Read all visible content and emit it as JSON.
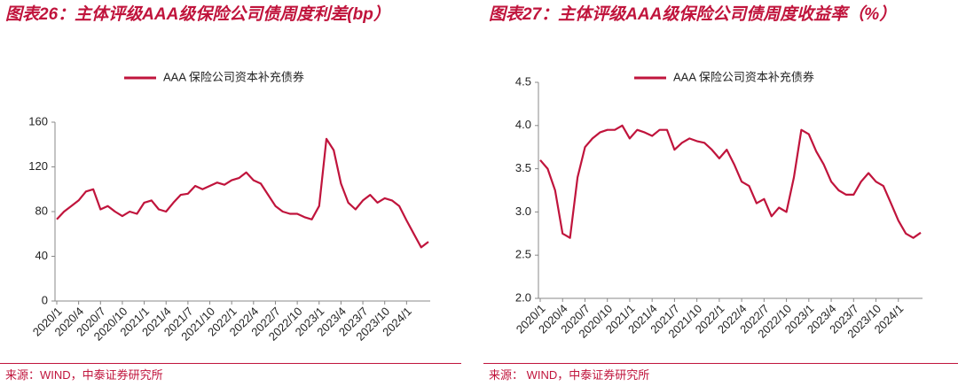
{
  "chart_data": [
    {
      "type": "line",
      "title": "图表26：主体评级AAA级保险公司债周度利差(bp）",
      "source": "来源：WIND，中泰证券研究所",
      "categories": [
        "2020/1",
        null,
        null,
        "2020/4",
        null,
        null,
        "2020/7",
        null,
        null,
        "2020/10",
        null,
        null,
        "2021/1",
        null,
        null,
        "2021/4",
        null,
        null,
        "2021/7",
        null,
        null,
        "2021/10",
        null,
        null,
        "2022/1",
        null,
        null,
        "2022/4",
        null,
        null,
        "2022/7",
        null,
        null,
        "2022/10",
        null,
        null,
        "2023/1",
        null,
        null,
        "2023/4",
        null,
        null,
        "2023/7",
        null,
        null,
        "2023/10",
        null,
        null,
        "2024/1",
        null,
        null,
        null
      ],
      "series": [
        {
          "name": "AAA 保险公司资本补充债券",
          "color": "#c0143c",
          "values": [
            73,
            80,
            85,
            90,
            98,
            100,
            82,
            85,
            80,
            76,
            80,
            78,
            88,
            90,
            82,
            80,
            88,
            95,
            96,
            103,
            100,
            103,
            106,
            104,
            108,
            110,
            115,
            108,
            105,
            95,
            85,
            80,
            78,
            78,
            75,
            73,
            85,
            145,
            135,
            105,
            88,
            82,
            90,
            95,
            88,
            92,
            90,
            85,
            72,
            60,
            48,
            53
          ]
        }
      ],
      "ylim": [
        0,
        160
      ],
      "yticks": [
        0,
        40,
        80,
        120,
        160
      ]
    },
    {
      "type": "line",
      "title": "图表27：主体评级AAA级保险公司债周度收益率（%）",
      "source": "来源： WIND，中泰证券研究所",
      "categories": [
        "2020/1",
        null,
        null,
        "2020/4",
        null,
        null,
        "2020/7",
        null,
        null,
        "2020/10",
        null,
        null,
        "2021/1",
        null,
        null,
        "2021/4",
        null,
        null,
        "2021/7",
        null,
        null,
        "2021/10",
        null,
        null,
        "2022/1",
        null,
        null,
        "2022/4",
        null,
        null,
        "2022/7",
        null,
        null,
        "2022/10",
        null,
        null,
        "2023/1",
        null,
        null,
        "2023/4",
        null,
        null,
        "2023/7",
        null,
        null,
        "2023/10",
        null,
        null,
        "2024/1",
        null,
        null,
        null
      ],
      "series": [
        {
          "name": "AAA 保险公司资本补充债券",
          "color": "#c0143c",
          "values": [
            3.6,
            3.5,
            3.25,
            2.75,
            2.7,
            3.4,
            3.75,
            3.85,
            3.92,
            3.95,
            3.95,
            4.0,
            3.85,
            3.95,
            3.92,
            3.88,
            3.95,
            3.95,
            3.72,
            3.8,
            3.85,
            3.82,
            3.8,
            3.72,
            3.62,
            3.72,
            3.55,
            3.35,
            3.3,
            3.1,
            3.15,
            2.95,
            3.05,
            3.0,
            3.4,
            3.95,
            3.9,
            3.7,
            3.55,
            3.35,
            3.25,
            3.2,
            3.2,
            3.35,
            3.45,
            3.35,
            3.3,
            3.1,
            2.9,
            2.75,
            2.7,
            2.76
          ]
        }
      ],
      "ylim": [
        2,
        4.5
      ],
      "yticks": [
        {
          "value": 2,
          "label": "2.0"
        },
        2.5,
        {
          "value": 3,
          "label": "3.0"
        },
        3.5,
        {
          "value": 4,
          "label": "4.0"
        },
        4.5
      ]
    }
  ]
}
